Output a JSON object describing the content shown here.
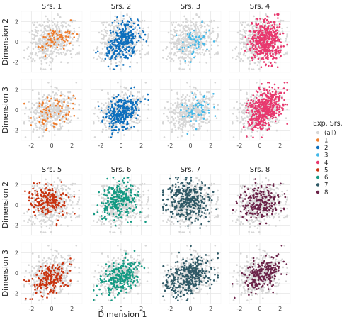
{
  "chart_data": {
    "type": "scatter",
    "xlabel": "Dimension 1",
    "row_labels": [
      "Dimension 2",
      "Dimension 3",
      "Dimension 2",
      "Dimension 3"
    ],
    "xlim": [
      -3,
      3
    ],
    "ylim": [
      -3,
      3
    ],
    "x_ticks": [
      -2,
      0,
      2
    ],
    "y_ticks": [
      -2,
      0,
      2
    ],
    "grid": true,
    "legend": {
      "title": "Exp. Srs.",
      "position": "right",
      "entries": [
        {
          "label": "(all)",
          "color": "#d6d6d6"
        },
        {
          "label": "1",
          "color": "#ee7b2a"
        },
        {
          "label": "2",
          "color": "#0d6fbd"
        },
        {
          "label": "3",
          "color": "#44b8e8"
        },
        {
          "label": "4",
          "color": "#e8386e"
        },
        {
          "label": "5",
          "color": "#c8320e"
        },
        {
          "label": "6",
          "color": "#149a83"
        },
        {
          "label": "7",
          "color": "#2f5966"
        },
        {
          "label": "8",
          "color": "#6b2248"
        }
      ]
    },
    "series": [
      {
        "name": "Srs. 1",
        "legend": "1",
        "color": "#ee7b2a",
        "d2": {
          "cx": 0.4,
          "cy": 0.3,
          "sx": 0.9,
          "sy": 0.7,
          "r": 0.6,
          "n": 70
        },
        "d3": {
          "cx": 0.2,
          "cy": -0.2,
          "sx": 1.0,
          "sy": 0.8,
          "r": 0.2,
          "n": 70
        }
      },
      {
        "name": "Srs. 2",
        "legend": "2",
        "color": "#0d6fbd",
        "d2": {
          "cx": 0.1,
          "cy": 0.0,
          "sx": 0.8,
          "sy": 0.9,
          "r": 0.4,
          "n": 260
        },
        "d3": {
          "cx": 0.1,
          "cy": -0.3,
          "sx": 0.85,
          "sy": 0.8,
          "r": 0.3,
          "n": 260
        }
      },
      {
        "name": "Srs. 3",
        "legend": "3",
        "color": "#44b8e8",
        "d2": {
          "cx": 0.5,
          "cy": 0.2,
          "sx": 0.8,
          "sy": 0.9,
          "r": 0.3,
          "n": 55
        },
        "d3": {
          "cx": 0.5,
          "cy": -0.1,
          "sx": 0.8,
          "sy": 0.8,
          "r": 0.2,
          "n": 55
        }
      },
      {
        "name": "Srs. 4",
        "legend": "4",
        "color": "#e8386e",
        "d2": {
          "cx": 0.6,
          "cy": 0.1,
          "sx": 0.75,
          "sy": 1.0,
          "r": 0.1,
          "n": 420
        },
        "d3": {
          "cx": 0.5,
          "cy": 0.1,
          "sx": 0.8,
          "sy": 1.0,
          "r": 0.4,
          "n": 420
        }
      },
      {
        "name": "Srs. 5",
        "legend": "5",
        "color": "#c8320e",
        "d2": {
          "cx": -0.3,
          "cy": 0.4,
          "sx": 0.9,
          "sy": 0.7,
          "r": 0.0,
          "n": 180
        },
        "d3": {
          "cx": -0.2,
          "cy": -0.5,
          "sx": 0.95,
          "sy": 0.8,
          "r": 0.4,
          "n": 180
        }
      },
      {
        "name": "Srs. 6",
        "legend": "6",
        "color": "#149a83",
        "d2": {
          "cx": -0.2,
          "cy": 0.5,
          "sx": 0.9,
          "sy": 0.9,
          "r": 0.1,
          "n": 240
        },
        "d3": {
          "cx": -0.1,
          "cy": -0.4,
          "sx": 0.9,
          "sy": 0.8,
          "r": 0.3,
          "n": 240
        }
      },
      {
        "name": "Srs. 7",
        "legend": "7",
        "color": "#2f5966",
        "d2": {
          "cx": -0.3,
          "cy": 0.5,
          "sx": 1.1,
          "sy": 1.0,
          "r": -0.1,
          "n": 320
        },
        "d3": {
          "cx": -0.2,
          "cy": -0.4,
          "sx": 1.1,
          "sy": 0.9,
          "r": 0.3,
          "n": 320
        }
      },
      {
        "name": "Srs. 8",
        "legend": "8",
        "color": "#6b2248",
        "d2": {
          "cx": 0.1,
          "cy": 0.3,
          "sx": 1.0,
          "sy": 0.9,
          "r": 0.1,
          "n": 200
        },
        "d3": {
          "cx": 0.3,
          "cy": -0.1,
          "sx": 0.95,
          "sy": 0.9,
          "r": 0.5,
          "n": 200
        }
      }
    ],
    "background": {
      "label": "(all)",
      "color": "#d6d6d6",
      "d2": {
        "cx": 0.0,
        "cy": 0.1,
        "sx": 1.1,
        "sy": 1.05,
        "r": 0.1,
        "n": 420
      },
      "d3": {
        "cx": 0.0,
        "cy": -0.2,
        "sx": 1.1,
        "sy": 0.95,
        "r": 0.25,
        "n": 420
      }
    }
  }
}
